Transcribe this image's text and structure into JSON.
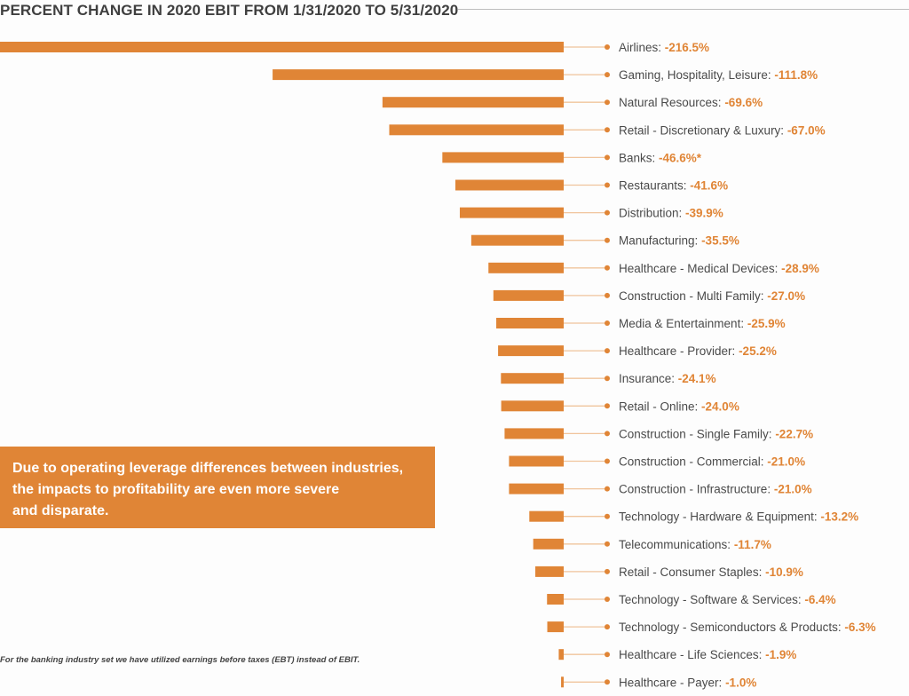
{
  "chart_data": {
    "type": "bar",
    "orientation": "horizontal",
    "title": "PERCENT CHANGE IN 2020 EBIT FROM 1/31/2020 TO 5/31/2020",
    "xlabel": "",
    "ylabel": "",
    "xlim": [
      -216.5,
      0
    ],
    "grid": false,
    "bar_color": "#e08536",
    "label_text_color": "#4a4a4a",
    "value_text_color": "#e08536",
    "categories": [
      "Airlines",
      "Gaming, Hospitality, Leisure",
      "Natural Resources",
      "Retail - Discretionary & Luxury",
      "Banks",
      "Restaurants",
      "Distribution",
      "Manufacturing",
      "Healthcare - Medical Devices",
      "Construction - Multi Family",
      "Media & Entertainment",
      "Healthcare - Provider",
      "Insurance",
      "Retail - Online",
      "Construction - Single Family",
      "Construction - Commercial",
      "Construction - Infrastructure",
      "Technology - Hardware & Equipment",
      "Telecommunications",
      "Retail - Consumer Staples",
      "Technology - Software & Services",
      "Technology - Semiconductors & Products",
      "Healthcare - Life Sciences",
      "Healthcare - Payer"
    ],
    "values": [
      -216.5,
      -111.8,
      -69.6,
      -67.0,
      -46.6,
      -41.6,
      -39.9,
      -35.5,
      -28.9,
      -27.0,
      -25.9,
      -25.2,
      -24.1,
      -24.0,
      -22.7,
      -21.0,
      -21.0,
      -13.2,
      -11.7,
      -10.9,
      -6.4,
      -6.3,
      -1.9,
      -1.0
    ],
    "value_labels": [
      "-216.5%",
      "-111.8%",
      "-69.6%",
      "-67.0%",
      "-46.6%*",
      "-41.6%",
      "-39.9%",
      "-35.5%",
      "-28.9%",
      "-27.0%",
      "-25.9%",
      "-25.2%",
      "-24.1%",
      "-24.0%",
      "-22.7%",
      "-21.0%",
      "-21.0%",
      "-13.2%",
      "-11.7%",
      "-10.9%",
      "-6.4%",
      "-6.3%",
      "-1.9%",
      "-1.0%"
    ]
  },
  "callout": {
    "lines": [
      "Due to operating leverage differences between industries,",
      "the impacts to profitability are even more severe",
      "and disparate."
    ]
  },
  "footnote": "For the banking industry set we have utilized earnings before taxes (EBT) instead of EBIT."
}
